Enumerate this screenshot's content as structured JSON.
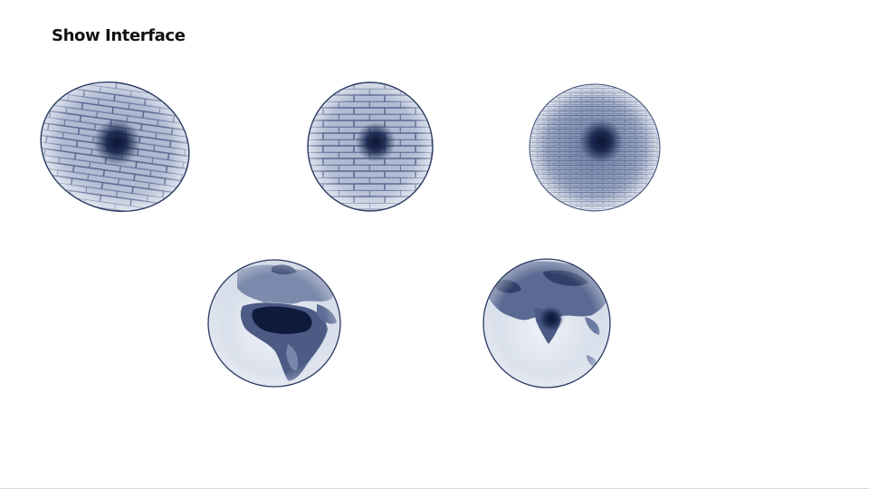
{
  "page": {
    "title": "Show Interface"
  },
  "colors": {
    "background": "#ffffff",
    "tint_dark": "#1b2a4e",
    "tint_mid": "#5a6c93",
    "tint_light": "#dfe5ef",
    "rim": "#2a3a62"
  },
  "spheres": [
    {
      "name": "brick-sphere-wide",
      "texture": "brick-coarse-icon"
    },
    {
      "name": "brick-sphere-medium",
      "texture": "brick-coarse-icon"
    },
    {
      "name": "brick-sphere-fine",
      "texture": "brick-fine-icon"
    },
    {
      "name": "earth-globe-africa",
      "texture": "earth-africa-icon"
    },
    {
      "name": "earth-globe-asia",
      "texture": "earth-asia-icon"
    }
  ]
}
